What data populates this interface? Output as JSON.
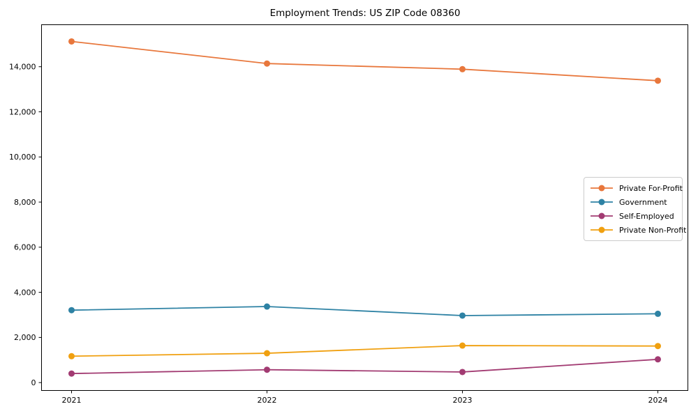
{
  "chart_data": {
    "type": "line",
    "title": "Employment Trends: US ZIP Code 08360",
    "categories": [
      "2021",
      "2022",
      "2023",
      "2024"
    ],
    "x": [
      2021,
      2022,
      2023,
      2024
    ],
    "series": [
      {
        "name": "Private For-Profit",
        "color": "#E8773C",
        "marker": "circle",
        "values": [
          15120,
          14140,
          13890,
          13380
        ]
      },
      {
        "name": "Government",
        "color": "#2E82A4",
        "marker": "circle",
        "values": [
          3210,
          3370,
          2970,
          3050
        ]
      },
      {
        "name": "Self-Employed",
        "color": "#A23B72",
        "marker": "circle",
        "values": [
          400,
          570,
          470,
          1030
        ]
      },
      {
        "name": "Private Non-Profit",
        "color": "#F0A010",
        "marker": "circle",
        "values": [
          1170,
          1300,
          1640,
          1620
        ]
      }
    ],
    "xlabel": "",
    "ylabel": "",
    "ylim": [
      -350,
      15860
    ],
    "y_ticks": [
      {
        "value": 0,
        "label": "0"
      },
      {
        "value": 2000,
        "label": "2,000"
      },
      {
        "value": 4000,
        "label": "4,000"
      },
      {
        "value": 6000,
        "label": "6,000"
      },
      {
        "value": 8000,
        "label": "8,000"
      },
      {
        "value": 10000,
        "label": "10,000"
      },
      {
        "value": 12000,
        "label": "12,000"
      },
      {
        "value": 14000,
        "label": "14,000"
      }
    ],
    "grid": false,
    "legend_position": "center-right",
    "axis_color": "#000000",
    "background_color": "#ffffff"
  }
}
